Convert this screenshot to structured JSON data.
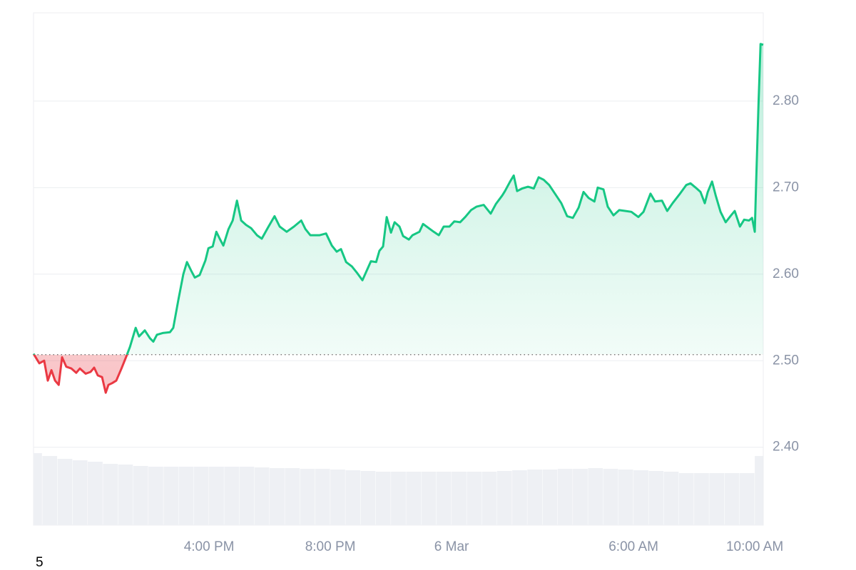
{
  "chart_data": {
    "type": "line",
    "x": [
      -13.79,
      -13.6,
      -13.44,
      -13.32,
      -13.2,
      -13.08,
      -12.96,
      -12.85,
      -12.71,
      -12.54,
      -12.38,
      -12.26,
      -12.07,
      -11.91,
      -11.79,
      -11.67,
      -11.53,
      -11.41,
      -11.32,
      -11.2,
      -11.06,
      -10.89,
      -10.73,
      -10.61,
      -10.42,
      -10.31,
      -10.12,
      -9.95,
      -9.84,
      -9.72,
      -9.53,
      -9.29,
      -9.18,
      -9.01,
      -8.85,
      -8.73,
      -8.59,
      -8.47,
      -8.31,
      -8.12,
      -8.02,
      -7.88,
      -7.76,
      -7.65,
      -7.53,
      -7.36,
      -7.22,
      -7.08,
      -6.94,
      -6.78,
      -6.61,
      -6.42,
      -6.26,
      -6.07,
      -5.84,
      -5.67,
      -5.44,
      -5.2,
      -4.96,
      -4.82,
      -4.66,
      -4.35,
      -4.14,
      -3.95,
      -3.79,
      -3.65,
      -3.48,
      -3.29,
      -3.13,
      -2.94,
      -2.75,
      -2.66,
      -2.49,
      -2.38,
      -2.26,
      -2.14,
      -2.0,
      -1.88,
      -1.72,
      -1.6,
      -1.41,
      -1.29,
      -1.06,
      -0.94,
      -0.71,
      -0.59,
      -0.42,
      -0.26,
      -0.07,
      0.09,
      0.28,
      0.45,
      0.64,
      0.82,
      1.06,
      1.29,
      1.46,
      1.67,
      1.76,
      1.93,
      2.05,
      2.16,
      2.33,
      2.52,
      2.71,
      2.87,
      3.04,
      3.22,
      3.41,
      3.62,
      3.81,
      4.0,
      4.19,
      4.35,
      4.52,
      4.71,
      4.82,
      5.01,
      5.15,
      5.34,
      5.53,
      5.74,
      5.93,
      6.16,
      6.33,
      6.56,
      6.71,
      6.94,
      7.11,
      7.29,
      7.51,
      7.74,
      7.88,
      8.05,
      8.21,
      8.35,
      8.45,
      8.59,
      8.71,
      8.87,
      9.04,
      9.22,
      9.34,
      9.51,
      9.65,
      9.81,
      9.91,
      10.0,
      10.05,
      10.12,
      10.19,
      10.28
    ],
    "values": [
      2.508,
      2.497,
      2.5,
      2.477,
      2.489,
      2.477,
      2.472,
      2.504,
      2.493,
      2.491,
      2.486,
      2.491,
      2.485,
      2.487,
      2.492,
      2.483,
      2.481,
      2.463,
      2.472,
      2.474,
      2.477,
      2.491,
      2.505,
      2.516,
      2.538,
      2.528,
      2.535,
      2.526,
      2.522,
      2.53,
      2.532,
      2.533,
      2.538,
      2.571,
      2.6,
      2.614,
      2.604,
      2.596,
      2.599,
      2.616,
      2.63,
      2.632,
      2.649,
      2.641,
      2.633,
      2.652,
      2.662,
      2.685,
      2.662,
      2.657,
      2.653,
      2.645,
      2.641,
      2.653,
      2.667,
      2.655,
      2.649,
      2.655,
      2.662,
      2.652,
      2.645,
      2.645,
      2.647,
      2.633,
      2.626,
      2.629,
      2.614,
      2.609,
      2.602,
      2.593,
      2.608,
      2.615,
      2.614,
      2.627,
      2.632,
      2.666,
      2.648,
      2.66,
      2.655,
      2.644,
      2.64,
      2.645,
      2.649,
      2.658,
      2.652,
      2.649,
      2.645,
      2.655,
      2.655,
      2.661,
      2.66,
      2.666,
      2.674,
      2.678,
      2.68,
      2.67,
      2.681,
      2.691,
      2.696,
      2.707,
      2.714,
      2.696,
      2.699,
      2.701,
      2.699,
      2.712,
      2.709,
      2.703,
      2.693,
      2.682,
      2.667,
      2.665,
      2.677,
      2.695,
      2.688,
      2.684,
      2.7,
      2.698,
      2.678,
      2.668,
      2.674,
      2.673,
      2.672,
      2.666,
      2.672,
      2.693,
      2.684,
      2.685,
      2.673,
      2.682,
      2.692,
      2.703,
      2.705,
      2.7,
      2.695,
      2.682,
      2.695,
      2.707,
      2.691,
      2.672,
      2.66,
      2.668,
      2.673,
      2.655,
      2.663,
      2.662,
      2.665,
      2.649,
      2.711,
      2.793,
      2.866,
      2.865
    ],
    "baseline": 2.507,
    "up_color": "#16c784",
    "down_color": "#ea3943",
    "xlim": [
      -13.79,
      10.28
    ],
    "ylim": [
      2.31,
      2.902
    ],
    "xticks": [
      {
        "value": -8,
        "label": "4:00 PM"
      },
      {
        "value": -4,
        "label": "8:00 PM"
      },
      {
        "value": 0,
        "label": "6 Mar"
      },
      {
        "value": 6,
        "label": "6:00 AM"
      },
      {
        "value": 10,
        "label": "10:00 AM"
      }
    ],
    "yticks": [
      {
        "value": 2.4,
        "label": "2.40"
      },
      {
        "value": 2.5,
        "label": "2.50"
      },
      {
        "value": 2.6,
        "label": "2.60"
      },
      {
        "value": 2.7,
        "label": "2.70"
      },
      {
        "value": 2.8,
        "label": "2.80"
      }
    ],
    "grid": true,
    "volume": {
      "color": "#eef0f4",
      "x": [
        -13.75,
        -13.25,
        -12.75,
        -12.25,
        -11.75,
        -11.25,
        -10.75,
        -10.25,
        -9.75,
        -9.25,
        -8.75,
        -8.25,
        -7.75,
        -7.25,
        -6.75,
        -6.25,
        -5.75,
        -5.25,
        -4.75,
        -4.25,
        -3.75,
        -3.25,
        -2.75,
        -2.25,
        -1.75,
        -1.25,
        -0.75,
        -0.25,
        0.25,
        0.75,
        1.25,
        1.75,
        2.25,
        2.75,
        3.25,
        3.75,
        4.25,
        4.75,
        5.25,
        5.75,
        6.25,
        6.75,
        7.25,
        7.75,
        8.25,
        8.75,
        9.25,
        9.75,
        10.25
      ],
      "values": [
        101,
        97,
        93,
        91,
        89,
        86,
        85,
        83,
        82,
        82,
        82,
        82,
        82,
        82,
        82,
        81,
        80,
        80,
        79,
        79,
        78,
        77,
        76,
        75,
        75,
        75,
        75,
        75,
        75,
        75,
        75,
        76,
        77,
        78,
        78,
        79,
        79,
        80,
        79,
        78,
        77,
        76,
        75,
        73,
        73,
        73,
        73,
        73,
        97
      ]
    },
    "footnote": "5"
  }
}
